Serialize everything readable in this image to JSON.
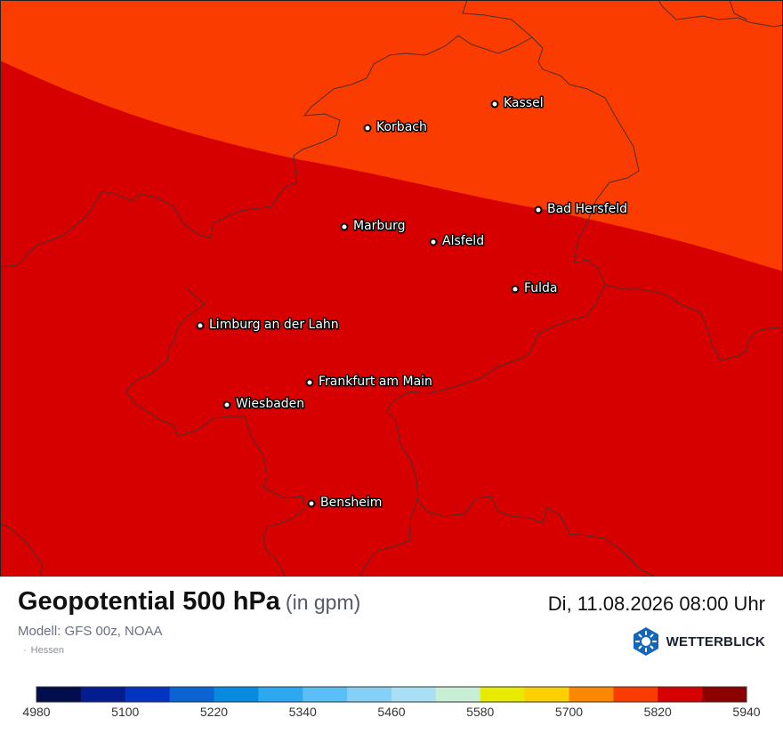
{
  "map": {
    "region": "Hessen",
    "colors": {
      "upper_band": "#fb3c00",
      "lower_band": "#d60000",
      "border": "#4a3030",
      "frame": "#222222"
    },
    "cities": [
      {
        "name": "Kassel"
      },
      {
        "name": "Korbach"
      },
      {
        "name": "Bad Hersfeld"
      },
      {
        "name": "Marburg"
      },
      {
        "name": "Alsfeld"
      },
      {
        "name": "Fulda"
      },
      {
        "name": "Limburg an der Lahn"
      },
      {
        "name": "Frankfurt am Main"
      },
      {
        "name": "Wiesbaden"
      },
      {
        "name": "Bensheim"
      }
    ]
  },
  "footer": {
    "title": "Geopotential 500 hPa",
    "unit": "(in gpm)",
    "datetime": "Di, 11.08.2026 08:00 Uhr",
    "model": "Modell: GFS 00z, NOAA",
    "region_dot": "·",
    "region": "Hessen",
    "brand": "WETTERBLICK",
    "brand_icon": "sun-logo-icon"
  },
  "colorbar": {
    "ticks": [
      "4980",
      "5100",
      "5220",
      "5340",
      "5460",
      "5580",
      "5700",
      "5820",
      "5940"
    ],
    "min": 4980,
    "max": 5940,
    "step": 60,
    "colors": [
      "#020d4d",
      "#051c8e",
      "#0533c1",
      "#0b63d4",
      "#078be0",
      "#2ba8f0",
      "#5abff6",
      "#85d0f7",
      "#a9e0f6",
      "#c6efd5",
      "#e8ea00",
      "#fad000",
      "#fb8800",
      "#fb3c00",
      "#d60000",
      "#8c0000"
    ]
  }
}
